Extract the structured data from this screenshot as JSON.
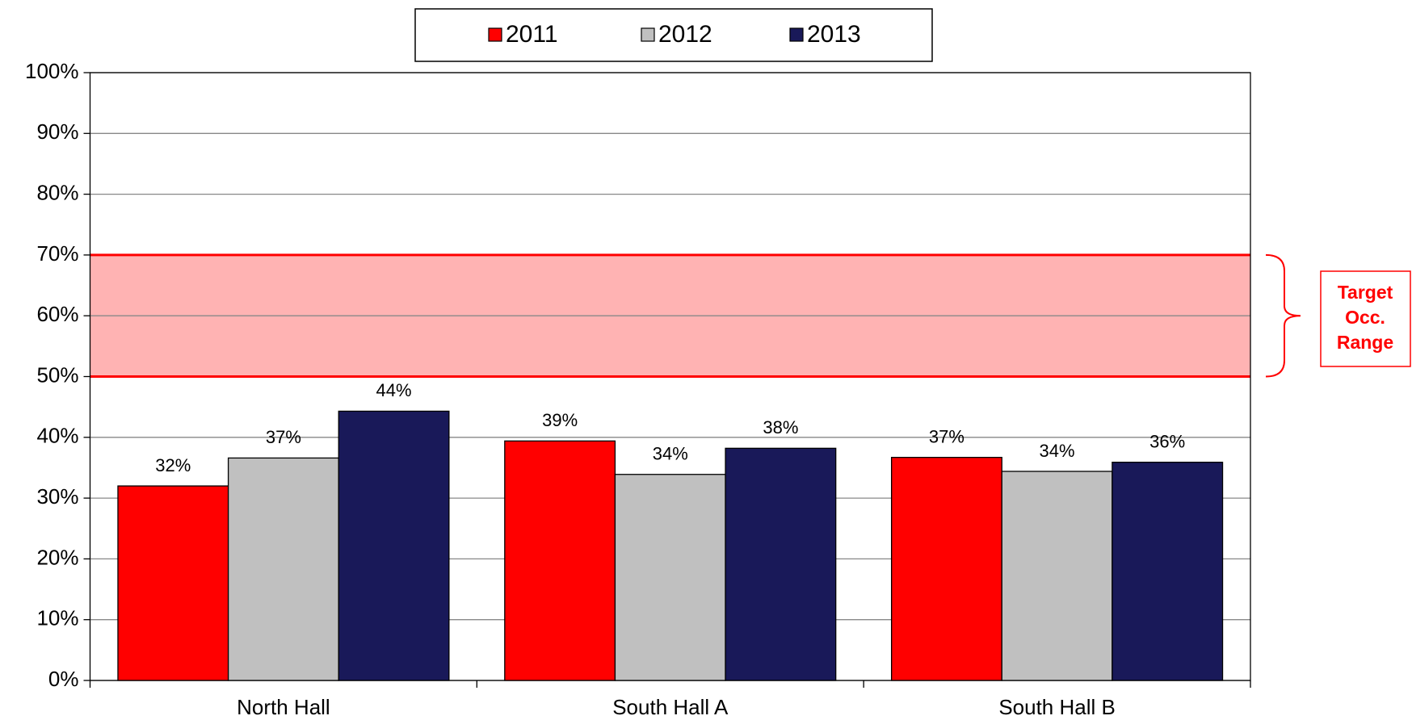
{
  "chart_data": {
    "type": "bar",
    "categories": [
      "North Hall",
      "South Hall A",
      "South Hall B"
    ],
    "series": [
      {
        "name": "2011",
        "color": "#ff0000",
        "values": [
          32.0,
          39.4,
          36.7
        ],
        "value_labels": [
          "32%",
          "39%",
          "37%"
        ]
      },
      {
        "name": "2012",
        "color": "#c0c0c0",
        "values": [
          36.6,
          33.9,
          34.4
        ],
        "value_labels": [
          "37%",
          "34%",
          "34%"
        ]
      },
      {
        "name": "2013",
        "color": "#191959",
        "values": [
          44.3,
          38.2,
          35.9
        ],
        "value_labels": [
          "44%",
          "38%",
          "36%"
        ]
      }
    ],
    "ylim": [
      0,
      100
    ],
    "yticks": [
      {
        "value": 0,
        "label": "0%"
      },
      {
        "value": 10,
        "label": "10%"
      },
      {
        "value": 20,
        "label": "20%"
      },
      {
        "value": 30,
        "label": "30%"
      },
      {
        "value": 40,
        "label": "40%"
      },
      {
        "value": 50,
        "label": "50%"
      },
      {
        "value": 60,
        "label": "60%"
      },
      {
        "value": 70,
        "label": "70%"
      },
      {
        "value": 80,
        "label": "80%"
      },
      {
        "value": 90,
        "label": "90%"
      },
      {
        "value": 100,
        "label": "100%"
      }
    ],
    "grid": true,
    "legend": "top",
    "target_range": [
      50,
      70
    ],
    "target_color": "#ff0000",
    "target_fill": "#ffb3b3",
    "annotation": [
      "Target",
      "Occ.",
      "Range"
    ]
  }
}
